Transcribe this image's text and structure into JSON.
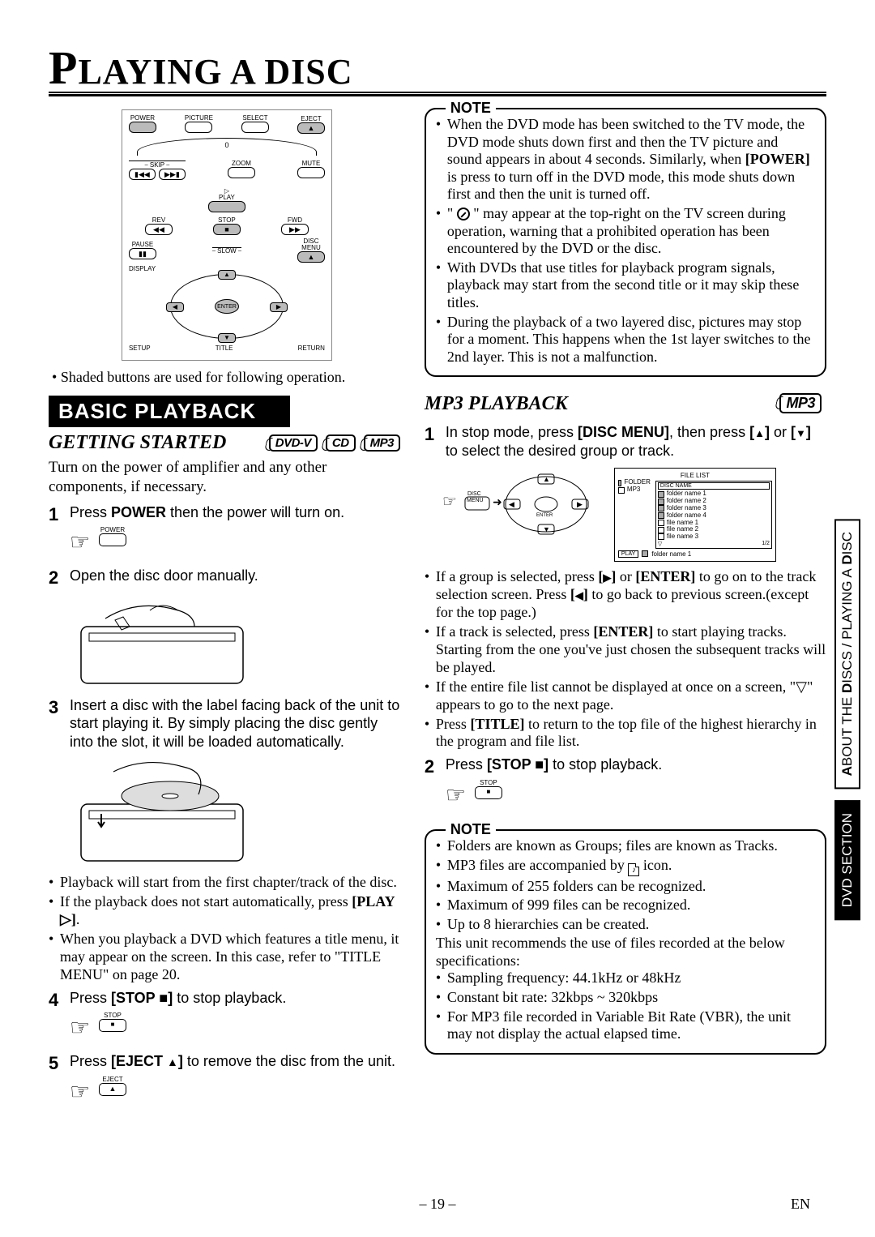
{
  "title_prefix": "P",
  "title_rest": "LAYING A DISC",
  "remote": {
    "row1": [
      "POWER",
      "PICTURE",
      "SELECT",
      "EJECT"
    ],
    "row2_labels": [
      "SKIP",
      "ZOOM",
      "MUTE"
    ],
    "play": "PLAY",
    "rev": "REV",
    "fwd": "FWD",
    "stop": "STOP",
    "pause": "PAUSE",
    "slow": "SLOW",
    "disc_menu": "DISC\nMENU",
    "display": "DISPLAY",
    "enter": "ENTER",
    "setup": "SETUP",
    "title": "TITLE",
    "return": "RETURN",
    "zero": "0"
  },
  "remote_caption": "Shaded buttons are used for following operation.",
  "basic_playback_banner": "BASIC PLAYBACK",
  "getting_started_head": "GETTING STARTED",
  "badges_gs": [
    "DVD-V",
    "CD",
    "MP3"
  ],
  "gs_intro": "Turn on the power of amplifier and any other components, if necessary.",
  "gs_steps": [
    {
      "n": "1",
      "html": "Press <b>POWER</b> then the power will turn on.",
      "btn": "POWER"
    },
    {
      "n": "2",
      "html": "Open the disc door manually."
    },
    {
      "n": "3",
      "html": "Insert a disc with the label facing back of the unit to start playing it. By simply placing the disc gently into the slot, it will be loaded automatically."
    }
  ],
  "gs_bullets": [
    "Playback will start from the first chapter/track of the disc.",
    "If the playback does not start automatically, press <b>[PLAY <span class='sym tri-right'></span>]</b>.",
    "When you playback a DVD which features a title menu, it may appear on the screen. In this case, refer to \"TITLE MENU\" on page 20."
  ],
  "gs_step4": {
    "n": "4",
    "html": "Press <b>[STOP <span class='sym sq'></span>]</b> to stop playback.",
    "btn": "STOP",
    "sym": "■"
  },
  "gs_step5": {
    "n": "5",
    "html": "Press <b>[EJECT <span class='sym ej'></span>]</b> to remove the disc from the unit.",
    "btn": "EJECT",
    "sym": "▲"
  },
  "note1_label": "NOTE",
  "note1_items": [
    "When the DVD mode has been switched to the TV mode, the DVD mode shuts down first and then the TV picture and sound appears in about 4 seconds. Similarly, when <b>[POWER]</b> is press to turn off in the DVD mode, this mode shuts down first and then the unit is turned off.",
    "\" <span class='prohibit'></span> \" may appear at the top-right on the TV screen during operation, warning that a prohibited operation has been encountered by the DVD or the disc.",
    "With DVDs that use titles for playback program signals, playback may start from the second title or it may skip these titles.",
    "During the playback of a two layered disc, pictures may stop for a moment. This happens when the 1st layer switches to the 2nd layer. This is not a malfunction."
  ],
  "mp3_head": "MP3 PLAYBACK",
  "mp3_badge": "MP3",
  "mp3_step1": {
    "n": "1",
    "html": "In stop mode, press <b>[DISC MENU]</b>, then press <b>[<span class='sym up'></span>]</b> or <b>[<span class='sym dn'></span>]</b> to select the desired group or track."
  },
  "file_list": {
    "title": "FILE LIST",
    "legend_folder": "FOLDER",
    "legend_mp3": "MP3",
    "disc_name": "DISC NAME",
    "rows": [
      "folder name 1",
      "folder name 2",
      "folder name 3",
      "folder name 4",
      "file name 1",
      "file name 2",
      "file name 3"
    ],
    "page": "1/2",
    "current": "folder name 1",
    "play_label": "PLAY"
  },
  "mp3_bullets": [
    "If a group is selected, press <b>[<span class='sym rt'></span>]</b> or <b>[ENTER]</b> to go on to the track selection screen. Press <b>[<span class='sym lt'></span>]</b> to go back to previous screen.(except for the top page.)",
    "If a track is selected, press <b>[ENTER]</b> to start playing tracks. Starting from the one you've just chosen the subsequent tracks will be played.",
    "If the entire file list cannot be displayed at once on a screen, \"<span class='sym tri-dn-outline'></span>\" appears to go to the next page.",
    "Press <b>[TITLE]</b> to return to the top file of the highest hierarchy in the program and file list."
  ],
  "mp3_step2": {
    "n": "2",
    "html": "Press <b>[STOP <span class='sym sq'></span>]</b> to stop playback.",
    "btn": "STOP",
    "sym": "■"
  },
  "note2_label": "NOTE",
  "note2_items": [
    "Folders are known as Groups; files are known as Tracks.",
    "MP3 files are accompanied by <span class='mp3-file-icon'></span> icon.",
    "Maximum of 255 folders can be recognized.",
    "Maximum of 999 files can be recognized.",
    "Up to 8 hierarchies can be created."
  ],
  "note2_para": "This unit recommends the use of files recorded at the below specifications:",
  "note2_items2": [
    "Sampling frequency: 44.1kHz or 48kHz",
    "Constant bit rate: 32kbps ~ 320kbps",
    "For MP3 file recorded in Variable Bit Rate (VBR), the unit may not display the actual elapsed time."
  ],
  "side_tab_white_1": "A",
  "side_tab_white_2": "BOUT THE",
  "side_tab_white_3": " D",
  "side_tab_white_4": "ISCS",
  "side_tab_white_5": " / P",
  "side_tab_white_6": "LAYING A",
  "side_tab_white_7": " D",
  "side_tab_white_8": "ISC",
  "side_tab_black": "DVD SECTION",
  "page_number": "– 19 –",
  "page_en": "EN",
  "colors": {
    "bg": "#ffffff",
    "text": "#000000",
    "banner_bg": "#000000",
    "banner_fg": "#ffffff",
    "shaded_btn": "#bbbbbb"
  }
}
